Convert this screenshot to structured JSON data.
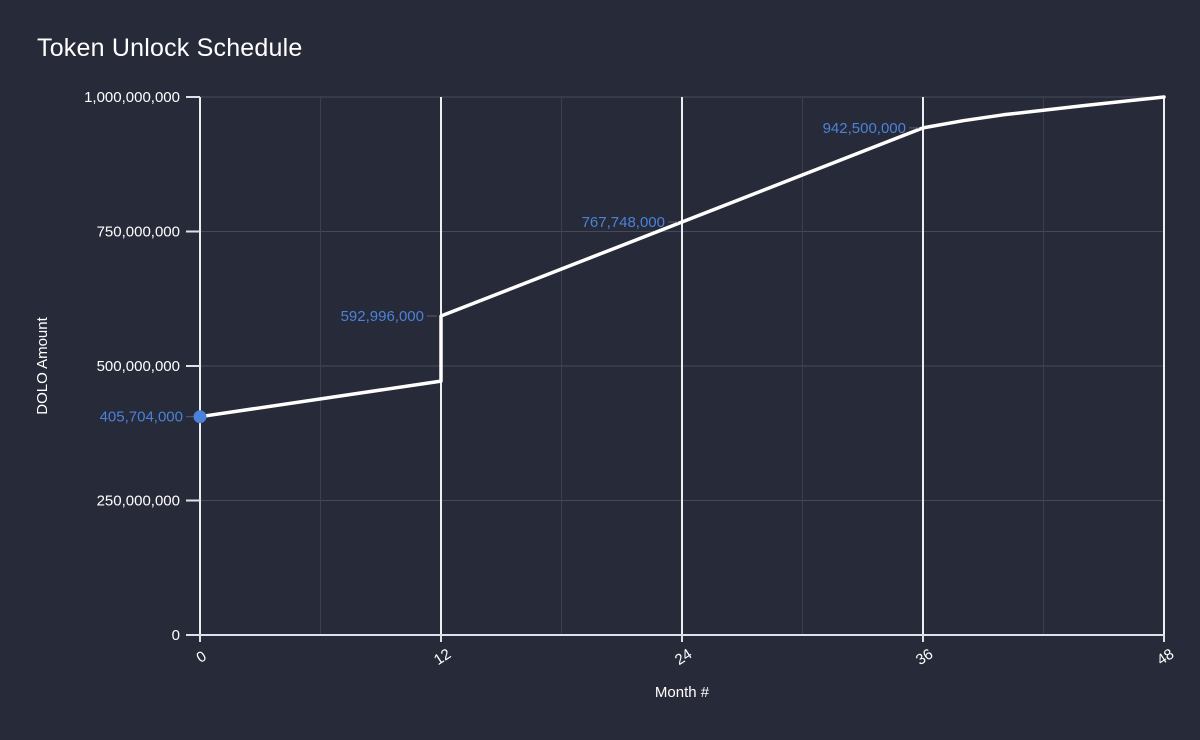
{
  "title": "Token Unlock Schedule",
  "colors": {
    "background": "#272a38",
    "text": "#ffffff",
    "grid_horizontal": "#454a5a",
    "grid_minor_vertical": "#3b3f4e",
    "grid_major_vertical": "#eceef2",
    "axis": "#dfe1e8",
    "series_line": "#ffffff",
    "accent_blue": "#4b82d9",
    "label_connector": "#5a5f70"
  },
  "chart_data": {
    "type": "line",
    "title": "Token Unlock Schedule",
    "xlabel": "Month #",
    "ylabel": "DOLO Amount",
    "xlim": [
      0,
      48
    ],
    "ylim": [
      0,
      1000000000
    ],
    "grid": true,
    "legend_position": "none",
    "x_major_ticks": [
      0,
      12,
      24,
      36,
      48
    ],
    "x_tick_labels": [
      "0",
      "12",
      "24",
      "36",
      "48"
    ],
    "x_minor_gridlines": [
      6,
      18,
      30,
      42
    ],
    "y_ticks": [
      0,
      250000000,
      500000000,
      750000000,
      1000000000
    ],
    "y_tick_labels": [
      "0",
      "250,000,000",
      "500,000,000",
      "750,000,000",
      "1,000,000,000"
    ],
    "series": [
      {
        "name": "DOLO Amount",
        "points": [
          [
            0,
            405704000
          ],
          [
            12,
            472000000
          ],
          [
            12,
            592996000
          ],
          [
            24,
            767748000
          ],
          [
            36,
            942500000
          ],
          [
            38,
            956000000
          ],
          [
            40,
            967000000
          ],
          [
            44,
            984000000
          ],
          [
            48,
            1000000000
          ]
        ]
      }
    ],
    "point_labels": [
      {
        "month": 0,
        "value": 405704000,
        "text": "405,704,000",
        "marker": true
      },
      {
        "month": 12,
        "value": 592996000,
        "text": "592,996,000",
        "marker": false
      },
      {
        "month": 24,
        "value": 767748000,
        "text": "767,748,000",
        "marker": false
      },
      {
        "month": 36,
        "value": 942500000,
        "text": "942,500,000",
        "marker": false
      }
    ]
  }
}
